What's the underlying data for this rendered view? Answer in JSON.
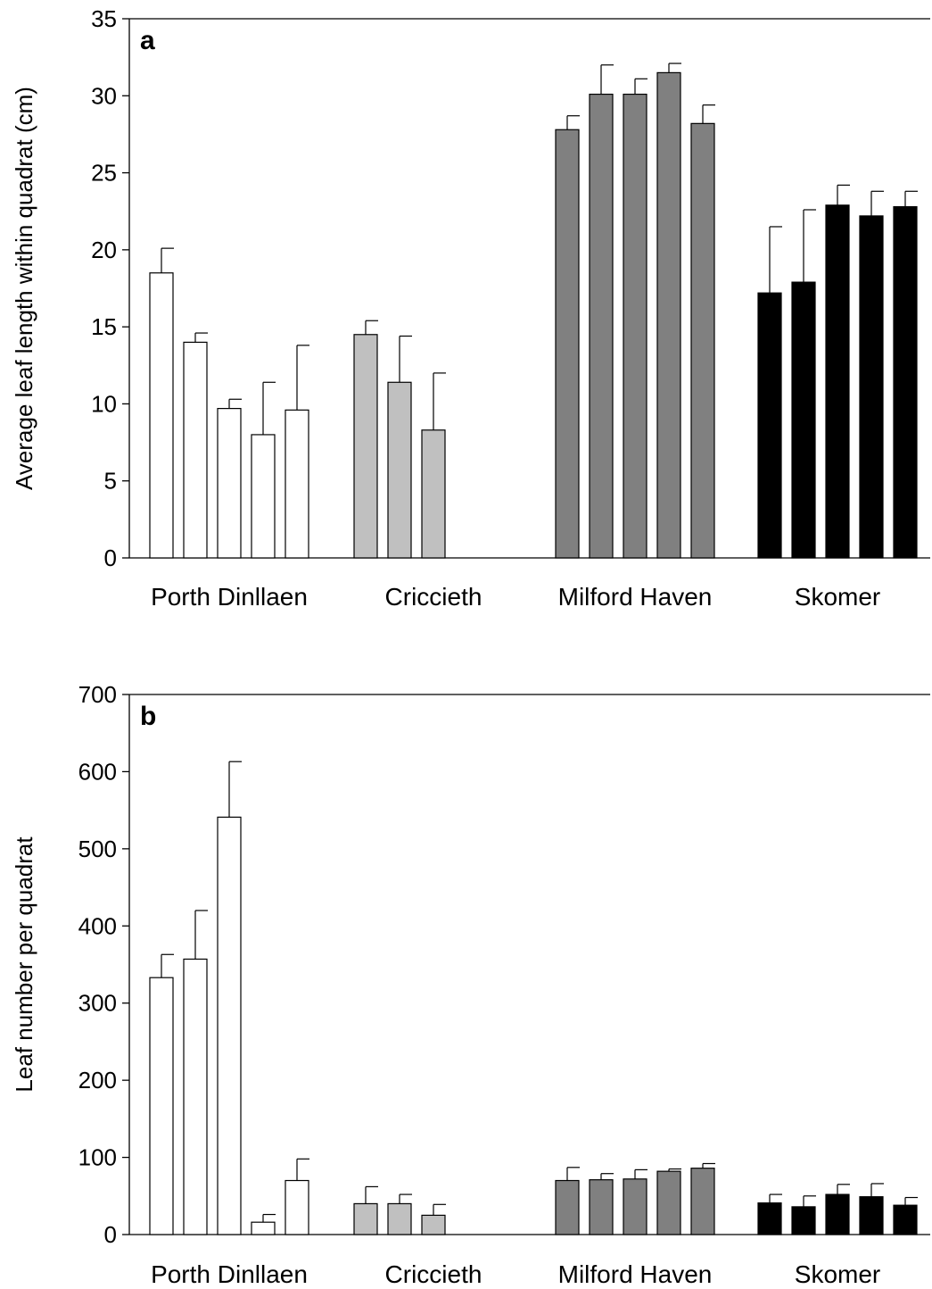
{
  "colors": {
    "Porth Dinllaen": "#ffffff",
    "Criccieth": "#c0c0c0",
    "Milford Haven": "#808080",
    "Skomer": "#000000"
  },
  "chart_data": [
    {
      "type": "bar",
      "panel_label": "a",
      "ylabel": "Average leaf length within quadrat (cm)",
      "ylim": [
        0,
        35
      ],
      "yticks": [
        "0",
        "5",
        "10",
        "15",
        "20",
        "25",
        "30",
        "35"
      ],
      "grid": false,
      "sites": [
        {
          "name": "Porth Dinllaen",
          "values": [
            18.5,
            14.0,
            9.7,
            8.0,
            9.6
          ],
          "errors": [
            1.6,
            0.6,
            0.6,
            3.4,
            4.2
          ]
        },
        {
          "name": "Criccieth",
          "values": [
            14.5,
            11.4,
            8.3
          ],
          "errors": [
            0.9,
            3.0,
            3.7
          ]
        },
        {
          "name": "Milford Haven",
          "values": [
            27.8,
            30.1,
            30.1,
            31.5,
            28.2
          ],
          "errors": [
            0.9,
            1.9,
            1.0,
            0.6,
            1.2
          ]
        },
        {
          "name": "Skomer",
          "values": [
            17.2,
            17.9,
            22.9,
            22.2,
            22.8
          ],
          "errors": [
            4.3,
            4.7,
            1.3,
            1.6,
            1.0
          ]
        }
      ]
    },
    {
      "type": "bar",
      "panel_label": "b",
      "ylabel": "Leaf number per quadrat",
      "ylim": [
        0,
        700
      ],
      "yticks": [
        "0",
        "100",
        "200",
        "300",
        "400",
        "500",
        "600",
        "700"
      ],
      "grid": false,
      "sites": [
        {
          "name": "Porth Dinllaen",
          "values": [
            333,
            357,
            541,
            16,
            70
          ],
          "errors": [
            30,
            63,
            72,
            10,
            28
          ]
        },
        {
          "name": "Criccieth",
          "values": [
            40,
            40,
            25
          ],
          "errors": [
            22,
            12,
            14
          ]
        },
        {
          "name": "Milford Haven",
          "values": [
            70,
            71,
            72,
            82,
            86
          ],
          "errors": [
            17,
            8,
            12,
            3,
            6
          ]
        },
        {
          "name": "Skomer",
          "values": [
            41,
            36,
            52,
            49,
            38
          ],
          "errors": [
            11,
            14,
            13,
            17,
            10
          ]
        }
      ]
    }
  ]
}
